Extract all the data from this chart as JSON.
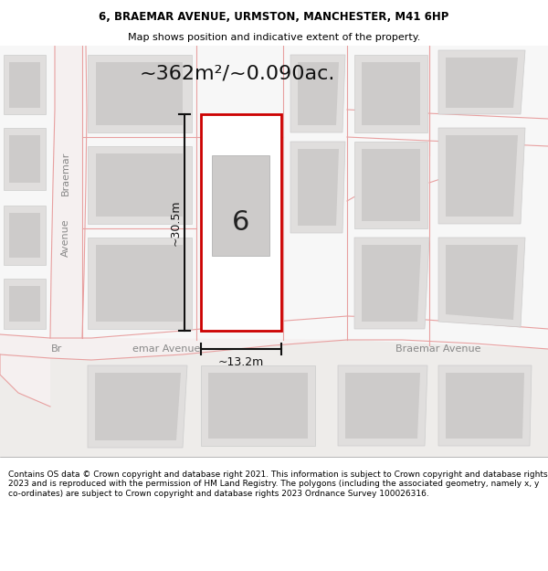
{
  "title_line1": "6, BRAEMAR AVENUE, URMSTON, MANCHESTER, M41 6HP",
  "title_line2": "Map shows position and indicative extent of the property.",
  "footer_text": "Contains OS data © Crown copyright and database right 2021. This information is subject to Crown copyright and database rights 2023 and is reproduced with the permission of HM Land Registry. The polygons (including the associated geometry, namely x, y co-ordinates) are subject to Crown copyright and database rights 2023 Ordnance Survey 100026316.",
  "area_text": "~362m²/~0.090ac.",
  "number_label": "6",
  "dim_width": "~13.2m",
  "dim_height": "~30.5m",
  "road_label_left_top": "Braemar",
  "road_label_left_bottom": "Avenue",
  "road_label_left_br": "Br",
  "road_label_bottom_left": "emar Avenue",
  "road_label_right": "Braemar Avenue",
  "bg_color": "#eeecea",
  "map_bg": "#eeecea",
  "white_block_color": "#f7f7f7",
  "plot_outline_color": "#cc0000",
  "plot_fill_color": "#ffffff",
  "building_outer_color": "#e0dedd",
  "building_inner_color": "#cdcbca",
  "road_line_color": "#e8a0a0",
  "road_fill_color": "#f5f0f0",
  "dim_line_color": "#111111",
  "title_fontsize": 8.5,
  "subtitle_fontsize": 8.0,
  "area_fontsize": 16,
  "number_fontsize": 22,
  "dim_fontsize": 9,
  "road_label_fontsize": 8,
  "footer_fontsize": 6.5
}
